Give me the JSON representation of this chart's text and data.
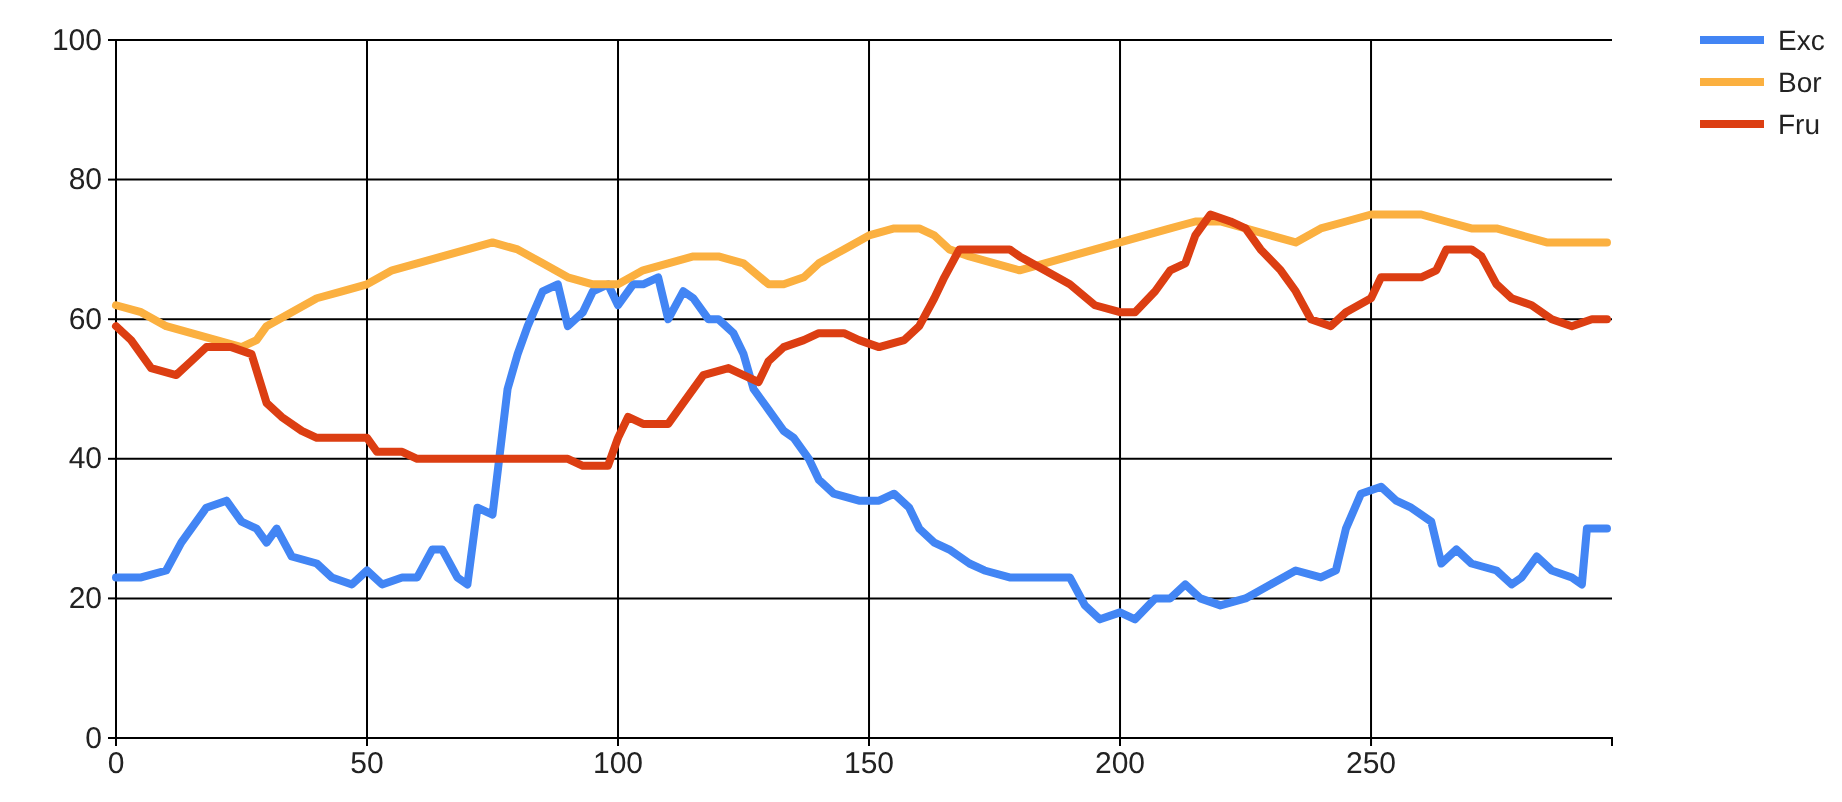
{
  "chart_data": {
    "type": "line",
    "xlim": [
      0,
      298
    ],
    "xticks": [
      0,
      50,
      100,
      150,
      200,
      250
    ],
    "ylim": [
      0,
      100
    ],
    "yticks": [
      0,
      20,
      40,
      60,
      80,
      100
    ],
    "grid": true,
    "legend": "top right",
    "line_style": "solid",
    "marker": "none",
    "series": [
      {
        "name": "Exc",
        "color": "#4285f4",
        "x": [
          0,
          5,
          10,
          13,
          15,
          18,
          22,
          25,
          28,
          30,
          32,
          35,
          40,
          43,
          47,
          50,
          53,
          57,
          60,
          63,
          65,
          68,
          70,
          72,
          75,
          78,
          80,
          82,
          85,
          88,
          90,
          93,
          95,
          98,
          100,
          103,
          105,
          108,
          110,
          113,
          115,
          118,
          120,
          123,
          125,
          127,
          130,
          133,
          135,
          138,
          140,
          143,
          148,
          152,
          155,
          158,
          160,
          163,
          166,
          170,
          173,
          178,
          185,
          190,
          193,
          196,
          200,
          203,
          207,
          210,
          213,
          216,
          220,
          225,
          230,
          235,
          240,
          243,
          245,
          248,
          252,
          255,
          258,
          262,
          264,
          267,
          270,
          275,
          278,
          280,
          283,
          286,
          290,
          292,
          293,
          297
        ],
        "values": [
          23,
          23,
          24,
          28,
          30,
          33,
          34,
          31,
          30,
          28,
          30,
          26,
          25,
          23,
          22,
          24,
          22,
          23,
          23,
          27,
          27,
          23,
          22,
          33,
          32,
          50,
          55,
          59,
          64,
          65,
          59,
          61,
          64,
          65,
          62,
          65,
          65,
          66,
          60,
          64,
          63,
          60,
          60,
          58,
          55,
          50,
          47,
          44,
          43,
          40,
          37,
          35,
          34,
          34,
          35,
          33,
          30,
          28,
          27,
          25,
          24,
          23,
          23,
          23,
          19,
          17,
          18,
          17,
          20,
          20,
          22,
          20,
          19,
          20,
          22,
          24,
          23,
          24,
          30,
          35,
          36,
          34,
          33,
          31,
          25,
          27,
          25,
          24,
          22,
          23,
          26,
          24,
          23,
          22,
          30,
          30
        ]
      },
      {
        "name": "Bor",
        "color": "#fbb040",
        "x": [
          0,
          5,
          10,
          15,
          20,
          25,
          28,
          30,
          35,
          40,
          45,
          50,
          55,
          60,
          65,
          70,
          75,
          80,
          85,
          90,
          95,
          100,
          105,
          110,
          115,
          120,
          125,
          130,
          133,
          137,
          140,
          145,
          150,
          155,
          160,
          163,
          166,
          170,
          175,
          180,
          185,
          190,
          195,
          200,
          205,
          210,
          215,
          220,
          225,
          230,
          235,
          240,
          245,
          250,
          255,
          260,
          265,
          270,
          275,
          280,
          285,
          290,
          297
        ],
        "values": [
          62,
          61,
          59,
          58,
          57,
          56,
          57,
          59,
          61,
          63,
          64,
          65,
          67,
          68,
          69,
          70,
          71,
          70,
          68,
          66,
          65,
          65,
          67,
          68,
          69,
          69,
          68,
          65,
          65,
          66,
          68,
          70,
          72,
          73,
          73,
          72,
          70,
          69,
          68,
          67,
          68,
          69,
          70,
          71,
          72,
          73,
          74,
          74,
          73,
          72,
          71,
          73,
          74,
          75,
          75,
          75,
          74,
          73,
          73,
          72,
          71,
          71,
          71
        ]
      },
      {
        "name": "Fru",
        "color": "#dc3e12",
        "x": [
          0,
          3,
          7,
          12,
          15,
          18,
          23,
          27,
          30,
          33,
          37,
          40,
          45,
          50,
          52,
          57,
          60,
          70,
          80,
          90,
          93,
          98,
          100,
          102,
          105,
          110,
          113,
          117,
          122,
          125,
          128,
          130,
          133,
          137,
          140,
          145,
          148,
          152,
          157,
          160,
          163,
          165,
          168,
          172,
          178,
          180,
          185,
          190,
          195,
          200,
          203,
          207,
          210,
          213,
          215,
          218,
          222,
          225,
          228,
          232,
          235,
          238,
          242,
          245,
          250,
          252,
          255,
          260,
          263,
          265,
          270,
          272,
          275,
          278,
          282,
          286,
          290,
          294,
          297
        ],
        "values": [
          59,
          57,
          53,
          52,
          54,
          56,
          56,
          55,
          48,
          46,
          44,
          43,
          43,
          43,
          41,
          41,
          40,
          40,
          40,
          40,
          39,
          39,
          43,
          46,
          45,
          45,
          48,
          52,
          53,
          52,
          51,
          54,
          56,
          57,
          58,
          58,
          57,
          56,
          57,
          59,
          63,
          66,
          70,
          70,
          70,
          69,
          67,
          65,
          62,
          61,
          61,
          64,
          67,
          68,
          72,
          75,
          74,
          73,
          70,
          67,
          64,
          60,
          59,
          61,
          63,
          66,
          66,
          66,
          67,
          70,
          70,
          69,
          65,
          63,
          62,
          60,
          59,
          60,
          60
        ]
      }
    ]
  }
}
